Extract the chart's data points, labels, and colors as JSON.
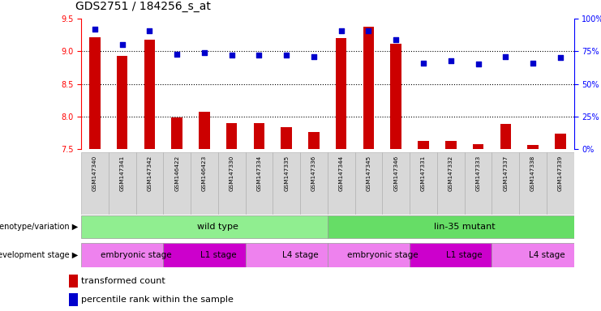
{
  "title": "GDS2751 / 184256_s_at",
  "samples": [
    "GSM147340",
    "GSM147341",
    "GSM147342",
    "GSM146422",
    "GSM146423",
    "GSM147330",
    "GSM147334",
    "GSM147335",
    "GSM147336",
    "GSM147344",
    "GSM147345",
    "GSM147346",
    "GSM147331",
    "GSM147332",
    "GSM147333",
    "GSM147337",
    "GSM147338",
    "GSM147339"
  ],
  "red_values": [
    9.22,
    8.93,
    9.18,
    7.99,
    8.08,
    7.9,
    7.9,
    7.84,
    7.76,
    9.2,
    9.38,
    9.12,
    7.63,
    7.63,
    7.58,
    7.89,
    7.56,
    7.74
  ],
  "blue_values": [
    92,
    80,
    91,
    73,
    74,
    72,
    72,
    72,
    71,
    91,
    91,
    84,
    66,
    68,
    65,
    71,
    66,
    70
  ],
  "ylim_left": [
    7.5,
    9.5
  ],
  "ylim_right": [
    0,
    100
  ],
  "yticks_left": [
    7.5,
    8.0,
    8.5,
    9.0,
    9.5
  ],
  "yticks_right": [
    0,
    25,
    50,
    75,
    100
  ],
  "ytick_labels_right": [
    "0%",
    "25%",
    "50%",
    "75%",
    "100%"
  ],
  "grid_lines": [
    9.0,
    8.5,
    8.0
  ],
  "bar_color": "#CC0000",
  "dot_color": "#0000CC",
  "bar_bottom": 7.5,
  "genotype_groups": [
    {
      "label": "wild type",
      "start": 0,
      "end": 9,
      "color": "#90EE90"
    },
    {
      "label": "lin-35 mutant",
      "start": 9,
      "end": 18,
      "color": "#66DD66"
    }
  ],
  "stage_groups": [
    {
      "label": "embryonic stage",
      "start": 0,
      "end": 3,
      "color": "#EE82EE"
    },
    {
      "label": "L1 stage",
      "start": 3,
      "end": 6,
      "color": "#CC00CC"
    },
    {
      "label": "L4 stage",
      "start": 6,
      "end": 9,
      "color": "#EE82EE"
    },
    {
      "label": "embryonic stage",
      "start": 9,
      "end": 12,
      "color": "#EE82EE"
    },
    {
      "label": "L1 stage",
      "start": 12,
      "end": 15,
      "color": "#CC00CC"
    },
    {
      "label": "L4 stage",
      "start": 15,
      "end": 18,
      "color": "#EE82EE"
    }
  ],
  "bar_width": 0.4,
  "bg_color": "#FFFFFF",
  "plot_bg_color": "#FFFFFF",
  "title_fontsize": 10,
  "tick_fontsize": 7,
  "label_fontsize": 6
}
